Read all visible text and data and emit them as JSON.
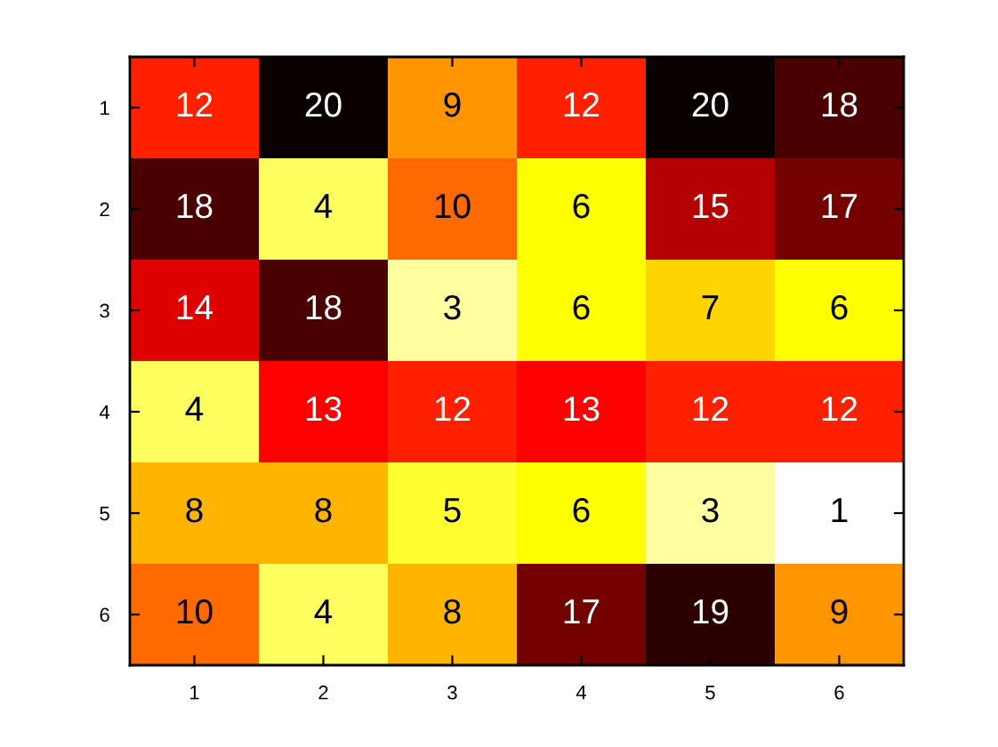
{
  "chart_data": {
    "type": "heatmap",
    "categories": [
      "1",
      "2",
      "3",
      "4",
      "5",
      "6"
    ],
    "y_categories": [
      "1",
      "2",
      "3",
      "4",
      "5",
      "6"
    ],
    "cells": [
      [
        12,
        20,
        9,
        12,
        20,
        18
      ],
      [
        18,
        4,
        10,
        6,
        15,
        17
      ],
      [
        14,
        18,
        3,
        6,
        7,
        6
      ],
      [
        4,
        13,
        12,
        13,
        12,
        12
      ],
      [
        8,
        8,
        5,
        6,
        3,
        1
      ],
      [
        10,
        4,
        8,
        17,
        19,
        9
      ]
    ],
    "data_labels": true
  }
}
